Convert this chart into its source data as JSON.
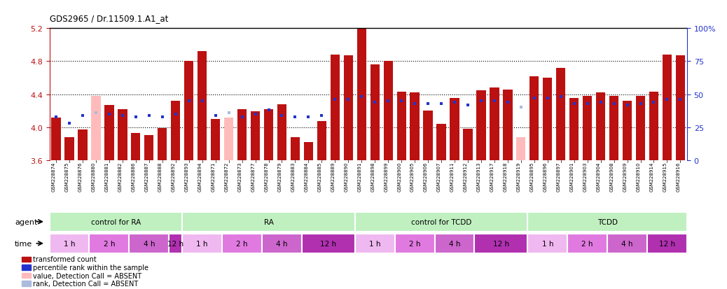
{
  "title": "GDS2965 / Dr.11509.1.A1_at",
  "ylim": [
    3.6,
    5.2
  ],
  "yticks_left": [
    3.6,
    4.0,
    4.4,
    4.8,
    5.2
  ],
  "right_yticks": [
    0,
    25,
    50,
    75,
    100
  ],
  "samples": [
    "GSM228874",
    "GSM228875",
    "GSM228876",
    "GSM228880",
    "GSM228881",
    "GSM228882",
    "GSM228886",
    "GSM228887",
    "GSM228888",
    "GSM228892",
    "GSM228893",
    "GSM228894",
    "GSM228871",
    "GSM228872",
    "GSM228873",
    "GSM228877",
    "GSM228878",
    "GSM228879",
    "GSM228883",
    "GSM228884",
    "GSM228885",
    "GSM228889",
    "GSM228890",
    "GSM228891",
    "GSM228898",
    "GSM228899",
    "GSM228900",
    "GSM228905",
    "GSM228906",
    "GSM228907",
    "GSM228911",
    "GSM228912",
    "GSM228913",
    "GSM228917",
    "GSM228918",
    "GSM228919",
    "GSM228895",
    "GSM228896",
    "GSM228897",
    "GSM228901",
    "GSM228903",
    "GSM228904",
    "GSM228908",
    "GSM228909",
    "GSM228910",
    "GSM228914",
    "GSM228915",
    "GSM228916"
  ],
  "bar_values": [
    4.12,
    3.88,
    3.97,
    4.38,
    4.27,
    4.22,
    3.93,
    3.9,
    3.99,
    4.32,
    4.8,
    4.92,
    4.1,
    4.12,
    4.22,
    4.19,
    4.22,
    4.28,
    3.88,
    3.82,
    4.07,
    4.88,
    4.87,
    5.2,
    4.76,
    4.8,
    4.43,
    4.42,
    4.2,
    4.04,
    4.35,
    3.98,
    4.45,
    4.48,
    4.46,
    3.88,
    4.62,
    4.6,
    4.72,
    4.35,
    4.38,
    4.42,
    4.38,
    4.32,
    4.38,
    4.43,
    4.88,
    4.87
  ],
  "absent_value": [
    false,
    false,
    false,
    true,
    false,
    false,
    false,
    false,
    false,
    false,
    false,
    false,
    false,
    true,
    false,
    false,
    false,
    false,
    false,
    false,
    false,
    false,
    false,
    false,
    false,
    false,
    false,
    false,
    false,
    false,
    false,
    false,
    false,
    false,
    false,
    true,
    false,
    false,
    false,
    false,
    false,
    false,
    false,
    false,
    false,
    false,
    false,
    false
  ],
  "rank_values": [
    33,
    28,
    34,
    36,
    35,
    34,
    33,
    34,
    33,
    35,
    45,
    45,
    34,
    36,
    33,
    35,
    38,
    34,
    33,
    33,
    34,
    46,
    46,
    48,
    44,
    45,
    45,
    43,
    43,
    43,
    44,
    42,
    45,
    45,
    44,
    40,
    47,
    47,
    48,
    43,
    43,
    44,
    43,
    42,
    43,
    44,
    46,
    46
  ],
  "absent_rank": [
    false,
    false,
    false,
    true,
    false,
    false,
    false,
    false,
    false,
    false,
    false,
    false,
    false,
    true,
    false,
    false,
    false,
    false,
    false,
    false,
    false,
    false,
    false,
    false,
    false,
    false,
    false,
    false,
    false,
    false,
    false,
    false,
    false,
    false,
    false,
    true,
    false,
    false,
    false,
    false,
    false,
    false,
    false,
    false,
    false,
    false,
    false,
    false
  ],
  "agent_groups": [
    {
      "label": "control for RA",
      "start": 0,
      "end": 10
    },
    {
      "label": "RA",
      "start": 10,
      "end": 23
    },
    {
      "label": "control for TCDD",
      "start": 23,
      "end": 36
    },
    {
      "label": "TCDD",
      "start": 36,
      "end": 48
    }
  ],
  "time_groups": [
    {
      "label": "1 h",
      "start": 0,
      "end": 3
    },
    {
      "label": "2 h",
      "start": 3,
      "end": 6
    },
    {
      "label": "4 h",
      "start": 6,
      "end": 9
    },
    {
      "label": "12 h",
      "start": 9,
      "end": 10
    },
    {
      "label": "1 h",
      "start": 10,
      "end": 13
    },
    {
      "label": "2 h",
      "start": 13,
      "end": 16
    },
    {
      "label": "4 h",
      "start": 16,
      "end": 19
    },
    {
      "label": "12 h",
      "start": 19,
      "end": 23
    },
    {
      "label": "1 h",
      "start": 23,
      "end": 26
    },
    {
      "label": "2 h",
      "start": 26,
      "end": 29
    },
    {
      "label": "4 h",
      "start": 29,
      "end": 32
    },
    {
      "label": "12 h",
      "start": 32,
      "end": 36
    },
    {
      "label": "1 h",
      "start": 36,
      "end": 39
    },
    {
      "label": "2 h",
      "start": 39,
      "end": 42
    },
    {
      "label": "4 h",
      "start": 42,
      "end": 45
    },
    {
      "label": "12 h",
      "start": 45,
      "end": 48
    }
  ],
  "time_colors": [
    "#f0b8f0",
    "#e07ae0",
    "#cc66cc",
    "#b030b0"
  ],
  "bar_color": "#bb1111",
  "absent_bar_color": "#ffbbbb",
  "rank_color": "#2233cc",
  "absent_rank_color": "#aabbdd",
  "agent_color": "#c0f0c0",
  "row_label_color": "#d8d8d8",
  "legend_items": [
    {
      "color": "#bb1111",
      "label": "transformed count"
    },
    {
      "color": "#2233cc",
      "label": "percentile rank within the sample"
    },
    {
      "color": "#ffbbbb",
      "label": "value, Detection Call = ABSENT"
    },
    {
      "color": "#aabbdd",
      "label": "rank, Detection Call = ABSENT"
    }
  ]
}
